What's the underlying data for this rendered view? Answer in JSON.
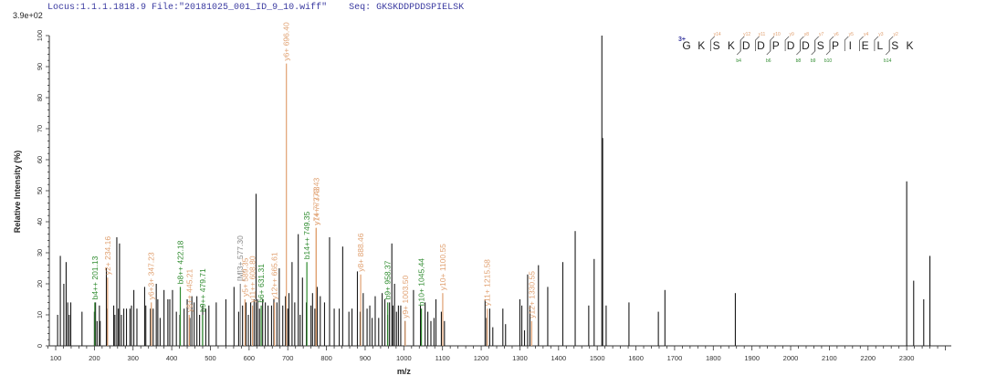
{
  "header": {
    "locus_label": "Locus:1.1.1.1818.9",
    "file_label": "File:\"20181025_001_ID_9_10.wiff\"",
    "seq_label": "Seq:",
    "seq_value": "GKSKDDPDDSPIELSK",
    "scale_label": "3.9e+02"
  },
  "colors": {
    "peak": "#1a1a1a",
    "y_ion": "#e0a070",
    "b_ion": "#2e8b2e",
    "charge": "#3a3aa0",
    "header": "#3a3aa0"
  },
  "chart_data": {
    "type": "bar",
    "title": "",
    "xlabel": "m/z",
    "ylabel": "Relative  Intensity (%)",
    "xlim": [
      56,
      2410
    ],
    "ylim": [
      0,
      100
    ],
    "x_ticks": [
      100,
      200,
      300,
      400,
      500,
      600,
      700,
      800,
      900,
      1000,
      1100,
      1200,
      1300,
      1400,
      1500,
      1600,
      1700,
      1800,
      1900,
      2000,
      2100,
      2200,
      2300
    ],
    "y_ticks": [
      0,
      10,
      20,
      30,
      40,
      50,
      60,
      70,
      80,
      90,
      100
    ],
    "base_peak_intensity": "3.9e+02",
    "peaks": [
      [
        105,
        10
      ],
      [
        112,
        29
      ],
      [
        121,
        20
      ],
      [
        127,
        27
      ],
      [
        131,
        14
      ],
      [
        135,
        10
      ],
      [
        139,
        14
      ],
      [
        168,
        11
      ],
      [
        200,
        11
      ],
      [
        203,
        14
      ],
      [
        207,
        8
      ],
      [
        213,
        13
      ],
      [
        215,
        8
      ],
      [
        231,
        25
      ],
      [
        232,
        12
      ],
      [
        250,
        13
      ],
      [
        253,
        10
      ],
      [
        258,
        35
      ],
      [
        262,
        12
      ],
      [
        265,
        33
      ],
      [
        270,
        10
      ],
      [
        276,
        12
      ],
      [
        283,
        12
      ],
      [
        292,
        12
      ],
      [
        296,
        13
      ],
      [
        302,
        18
      ],
      [
        310,
        12
      ],
      [
        330,
        19
      ],
      [
        333,
        13
      ],
      [
        345,
        12
      ],
      [
        352,
        12
      ],
      [
        360,
        20
      ],
      [
        364,
        15
      ],
      [
        370,
        9
      ],
      [
        380,
        18
      ],
      [
        390,
        15
      ],
      [
        395,
        15
      ],
      [
        402,
        18
      ],
      [
        412,
        11
      ],
      [
        421,
        10
      ],
      [
        432,
        12
      ],
      [
        440,
        15
      ],
      [
        447,
        9
      ],
      [
        452,
        16
      ],
      [
        458,
        14
      ],
      [
        465,
        16
      ],
      [
        472,
        10
      ],
      [
        480,
        13
      ],
      [
        488,
        12
      ],
      [
        496,
        13
      ],
      [
        515,
        14
      ],
      [
        540,
        15
      ],
      [
        561,
        19
      ],
      [
        573,
        11
      ],
      [
        583,
        13
      ],
      [
        592,
        14
      ],
      [
        598,
        10
      ],
      [
        604,
        14
      ],
      [
        613,
        15
      ],
      [
        618,
        49
      ],
      [
        622,
        15
      ],
      [
        627,
        12
      ],
      [
        635,
        15
      ],
      [
        642,
        14
      ],
      [
        649,
        13
      ],
      [
        658,
        13
      ],
      [
        664,
        15
      ],
      [
        672,
        14
      ],
      [
        678,
        25
      ],
      [
        687,
        13
      ],
      [
        694,
        16
      ],
      [
        700,
        12
      ],
      [
        703,
        17
      ],
      [
        711,
        27
      ],
      [
        718,
        14
      ],
      [
        727,
        36
      ],
      [
        732,
        10
      ],
      [
        738,
        22
      ],
      [
        748,
        14
      ],
      [
        760,
        13
      ],
      [
        764,
        17
      ],
      [
        770,
        12
      ],
      [
        776,
        19
      ],
      [
        784,
        16
      ],
      [
        795,
        14
      ],
      [
        808,
        35
      ],
      [
        820,
        12
      ],
      [
        833,
        12
      ],
      [
        842,
        32
      ],
      [
        858,
        11
      ],
      [
        866,
        12
      ],
      [
        880,
        24
      ],
      [
        887,
        11
      ],
      [
        895,
        17
      ],
      [
        905,
        12
      ],
      [
        912,
        13
      ],
      [
        918,
        9
      ],
      [
        926,
        16
      ],
      [
        935,
        9
      ],
      [
        944,
        17
      ],
      [
        951,
        15
      ],
      [
        958,
        10
      ],
      [
        963,
        14
      ],
      [
        969,
        33
      ],
      [
        972,
        13
      ],
      [
        976,
        20
      ],
      [
        981,
        11
      ],
      [
        986,
        13
      ],
      [
        992,
        13
      ],
      [
        1003,
        8
      ],
      [
        1025,
        18
      ],
      [
        1043,
        13
      ],
      [
        1055,
        14
      ],
      [
        1062,
        11
      ],
      [
        1070,
        8
      ],
      [
        1078,
        9
      ],
      [
        1083,
        15
      ],
      [
        1097,
        11
      ],
      [
        1105,
        8
      ],
      [
        1210,
        15
      ],
      [
        1214,
        9
      ],
      [
        1222,
        12
      ],
      [
        1230,
        6
      ],
      [
        1256,
        12
      ],
      [
        1263,
        7
      ],
      [
        1300,
        15
      ],
      [
        1305,
        13
      ],
      [
        1312,
        5
      ],
      [
        1320,
        23
      ],
      [
        1326,
        13
      ],
      [
        1348,
        26
      ],
      [
        1372,
        19
      ],
      [
        1411,
        27
      ],
      [
        1443,
        37
      ],
      [
        1478,
        13
      ],
      [
        1492,
        28
      ],
      [
        1512,
        100
      ],
      [
        1514,
        67
      ],
      [
        1523,
        13
      ],
      [
        1582,
        14
      ],
      [
        1658,
        11
      ],
      [
        1675,
        18
      ],
      [
        1857,
        17
      ],
      [
        2300,
        53
      ],
      [
        2318,
        21
      ],
      [
        2344,
        15
      ],
      [
        2360,
        29
      ]
    ],
    "annotations": [
      {
        "label": "b4++ 201.13",
        "mz": 201.13,
        "intensity": 14,
        "ion": "b"
      },
      {
        "label": "y2+ 234.16",
        "mz": 234.16,
        "intensity": 22,
        "ion": "y"
      },
      {
        "label": "y6+3+ 347.23",
        "mz": 347.23,
        "intensity": 14,
        "ion": "y"
      },
      {
        "label": "b8++ 422.18",
        "mz": 422.18,
        "intensity": 19,
        "ion": "b"
      },
      {
        "label": "y8++ 445.21",
        "mz": 445.21,
        "intensity": 10,
        "ion": "y"
      },
      {
        "label": "b9++ 479.71",
        "mz": 479.71,
        "intensity": 10,
        "ion": "b"
      },
      {
        "label": "[M]3+ 577.30",
        "mz": 577.3,
        "intensity": 20,
        "ion": "m"
      },
      {
        "label": "y5+ 589.35",
        "mz": 589.35,
        "intensity": 15,
        "ion": "y"
      },
      {
        "label": "y11++ 608.80",
        "mz": 608.8,
        "intensity": 13,
        "ion": "y"
      },
      {
        "label": "b6+ 631.31",
        "mz": 631.31,
        "intensity": 13,
        "ion": "b"
      },
      {
        "label": "y12++ 665.61",
        "mz": 665.61,
        "intensity": 14,
        "ion": "y"
      },
      {
        "label": "y6+ 696.40",
        "mz": 696.4,
        "intensity": 91,
        "ion": "y"
      },
      {
        "label": "b14++ 749.35",
        "mz": 749.35,
        "intensity": 27,
        "ion": "b"
      },
      {
        "label": "y7+ 773.43",
        "mz": 773.43,
        "intensity": 38,
        "ion": "y"
      },
      {
        "label": "y14++ 773.43",
        "mz": 773.43,
        "intensity": 38,
        "ion": "y"
      },
      {
        "label": "y8+ 888.46",
        "mz": 888.46,
        "intensity": 23,
        "ion": "y"
      },
      {
        "label": "b9+ 958.37",
        "mz": 958.37,
        "intensity": 14,
        "ion": "b"
      },
      {
        "label": "y9+ 1003.50",
        "mz": 1003.5,
        "intensity": 8,
        "ion": "y"
      },
      {
        "label": "b10+ 1045.44",
        "mz": 1045.44,
        "intensity": 12,
        "ion": "b"
      },
      {
        "label": "y10+ 1100.55",
        "mz": 1100.55,
        "intensity": 17,
        "ion": "y"
      },
      {
        "label": "y11+ 1215.58",
        "mz": 1215.58,
        "intensity": 12,
        "ion": "y"
      },
      {
        "label": "y12+ 1330.55",
        "mz": 1330.55,
        "intensity": 8,
        "ion": "y"
      }
    ]
  },
  "sequence_map": {
    "charge": "3+",
    "residues": [
      "G",
      "K",
      "S",
      "K",
      "D",
      "D",
      "P",
      "D",
      "D",
      "S",
      "P",
      "I",
      "E",
      "L",
      "S",
      "K"
    ],
    "y_labels": [
      "",
      "",
      "y14",
      "",
      "y12",
      "y11",
      "y10",
      "y9",
      "y8",
      "y7",
      "y6",
      "y5",
      "y4",
      "y3",
      "y2",
      ""
    ],
    "b_labels": [
      "",
      "",
      "",
      "",
      "b4",
      "",
      "b6",
      "",
      "b8",
      "b9",
      "b10",
      "",
      "",
      "",
      "b14",
      ""
    ]
  }
}
